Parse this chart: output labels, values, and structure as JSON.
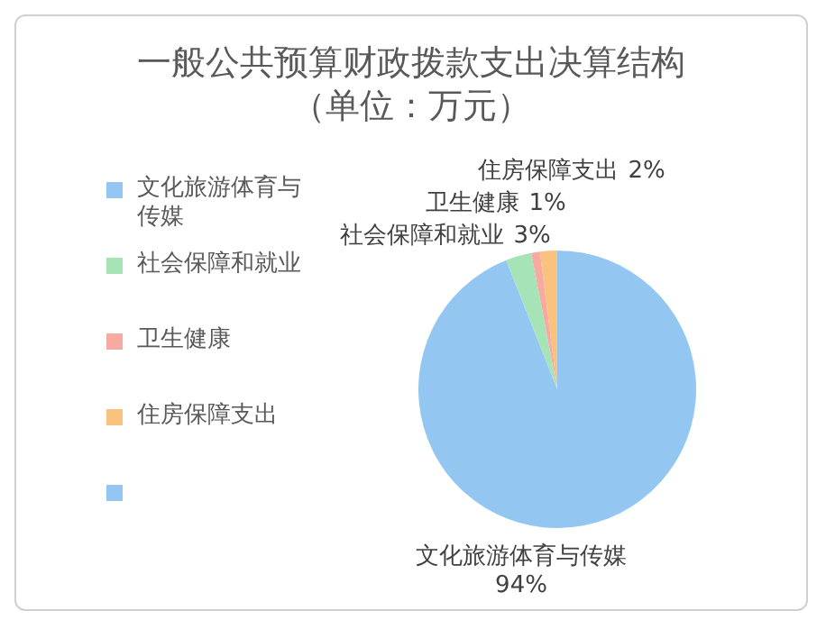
{
  "chart_data": {
    "type": "pie",
    "title": "一般公共预算财政拨款支出决算结构",
    "subtitle": "（单位：万元）",
    "categories": [
      "文化旅游体育与传媒",
      "社会保障和就业",
      "卫生健康",
      "住房保障支出",
      null
    ],
    "values": [
      94,
      3,
      1,
      2,
      0
    ],
    "colors": [
      "#93c7f2",
      "#a6e3b7",
      "#f7a9a2",
      "#f9c37f",
      "#93c7f2"
    ],
    "value_labels": [
      "94%",
      "3%",
      "1%",
      "2%",
      null
    ],
    "legend": "left"
  }
}
